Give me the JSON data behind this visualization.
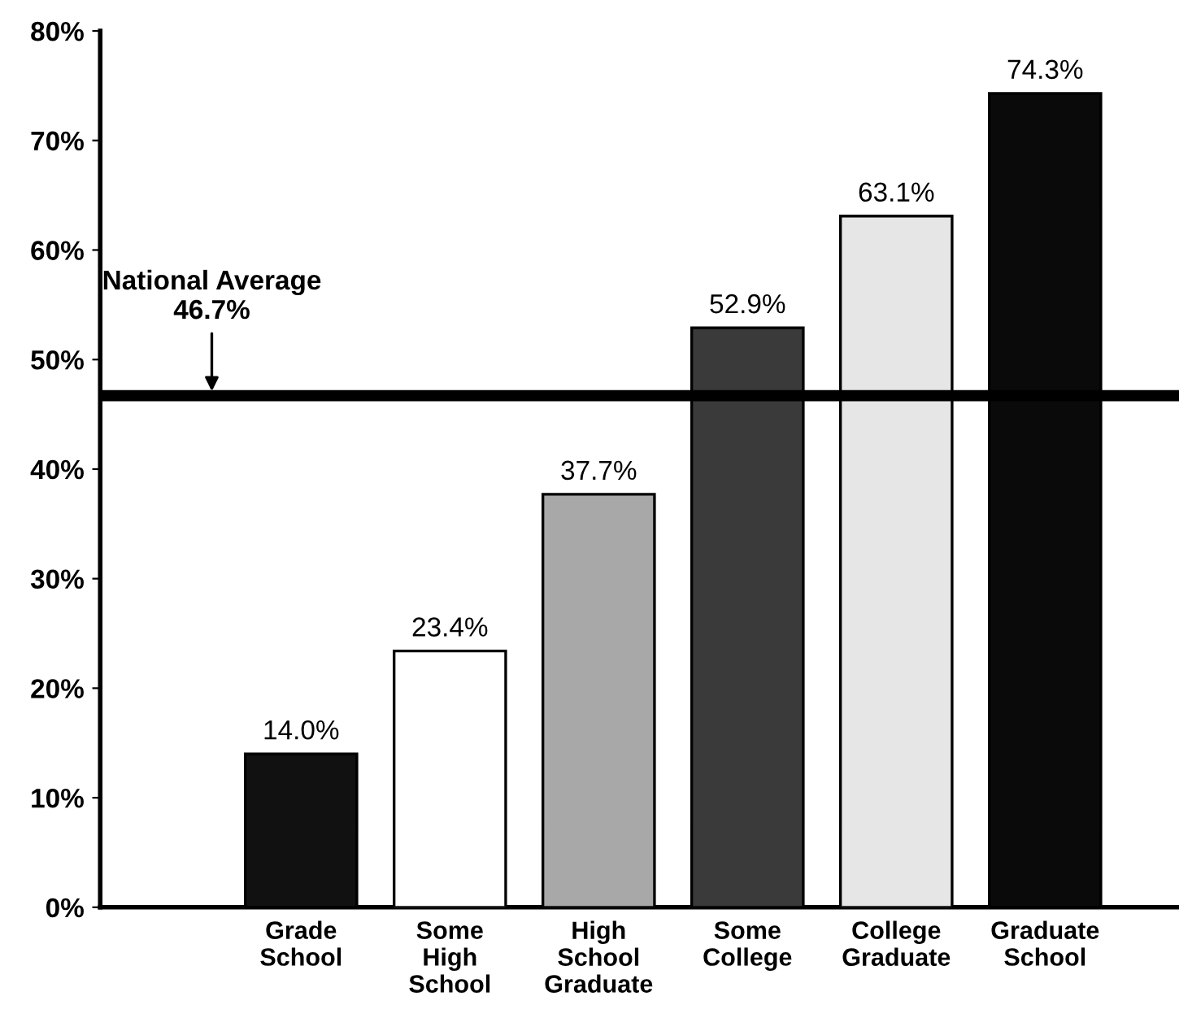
{
  "chart_data": {
    "type": "bar",
    "categories": [
      "Grade\nSchool",
      "Some\nHigh\nSchool",
      "High\nSchool\nGraduate",
      "Some\nCollege",
      "College\nGraduate",
      "Graduate\nSchool"
    ],
    "values": [
      14.0,
      23.4,
      37.7,
      52.9,
      63.1,
      74.3
    ],
    "colors": [
      "#111111",
      "#ffffff",
      "#a8a8a8",
      "#3a3a3a",
      "#e6e6e6",
      "#0a0a0a"
    ],
    "value_labels": [
      "14.0%",
      "23.4%",
      "37.7%",
      "52.9%",
      "63.1%",
      "74.3%"
    ],
    "ylim": [
      0,
      80
    ],
    "yticks": [
      {
        "value": 0,
        "label": "0%"
      },
      {
        "value": 10,
        "label": "10%"
      },
      {
        "value": 20,
        "label": "20%"
      },
      {
        "value": 30,
        "label": "30%"
      },
      {
        "value": 40,
        "label": "40%"
      },
      {
        "value": 50,
        "label": "50%"
      },
      {
        "value": 60,
        "label": "60%"
      },
      {
        "value": 70,
        "label": "70%"
      },
      {
        "value": 80,
        "label": "80%"
      }
    ],
    "ref_lines": [
      {
        "axis": "y",
        "value": 46.7,
        "label": "National Average\n46.7%",
        "color": "#000000"
      }
    ],
    "grid": false,
    "legend": false
  }
}
